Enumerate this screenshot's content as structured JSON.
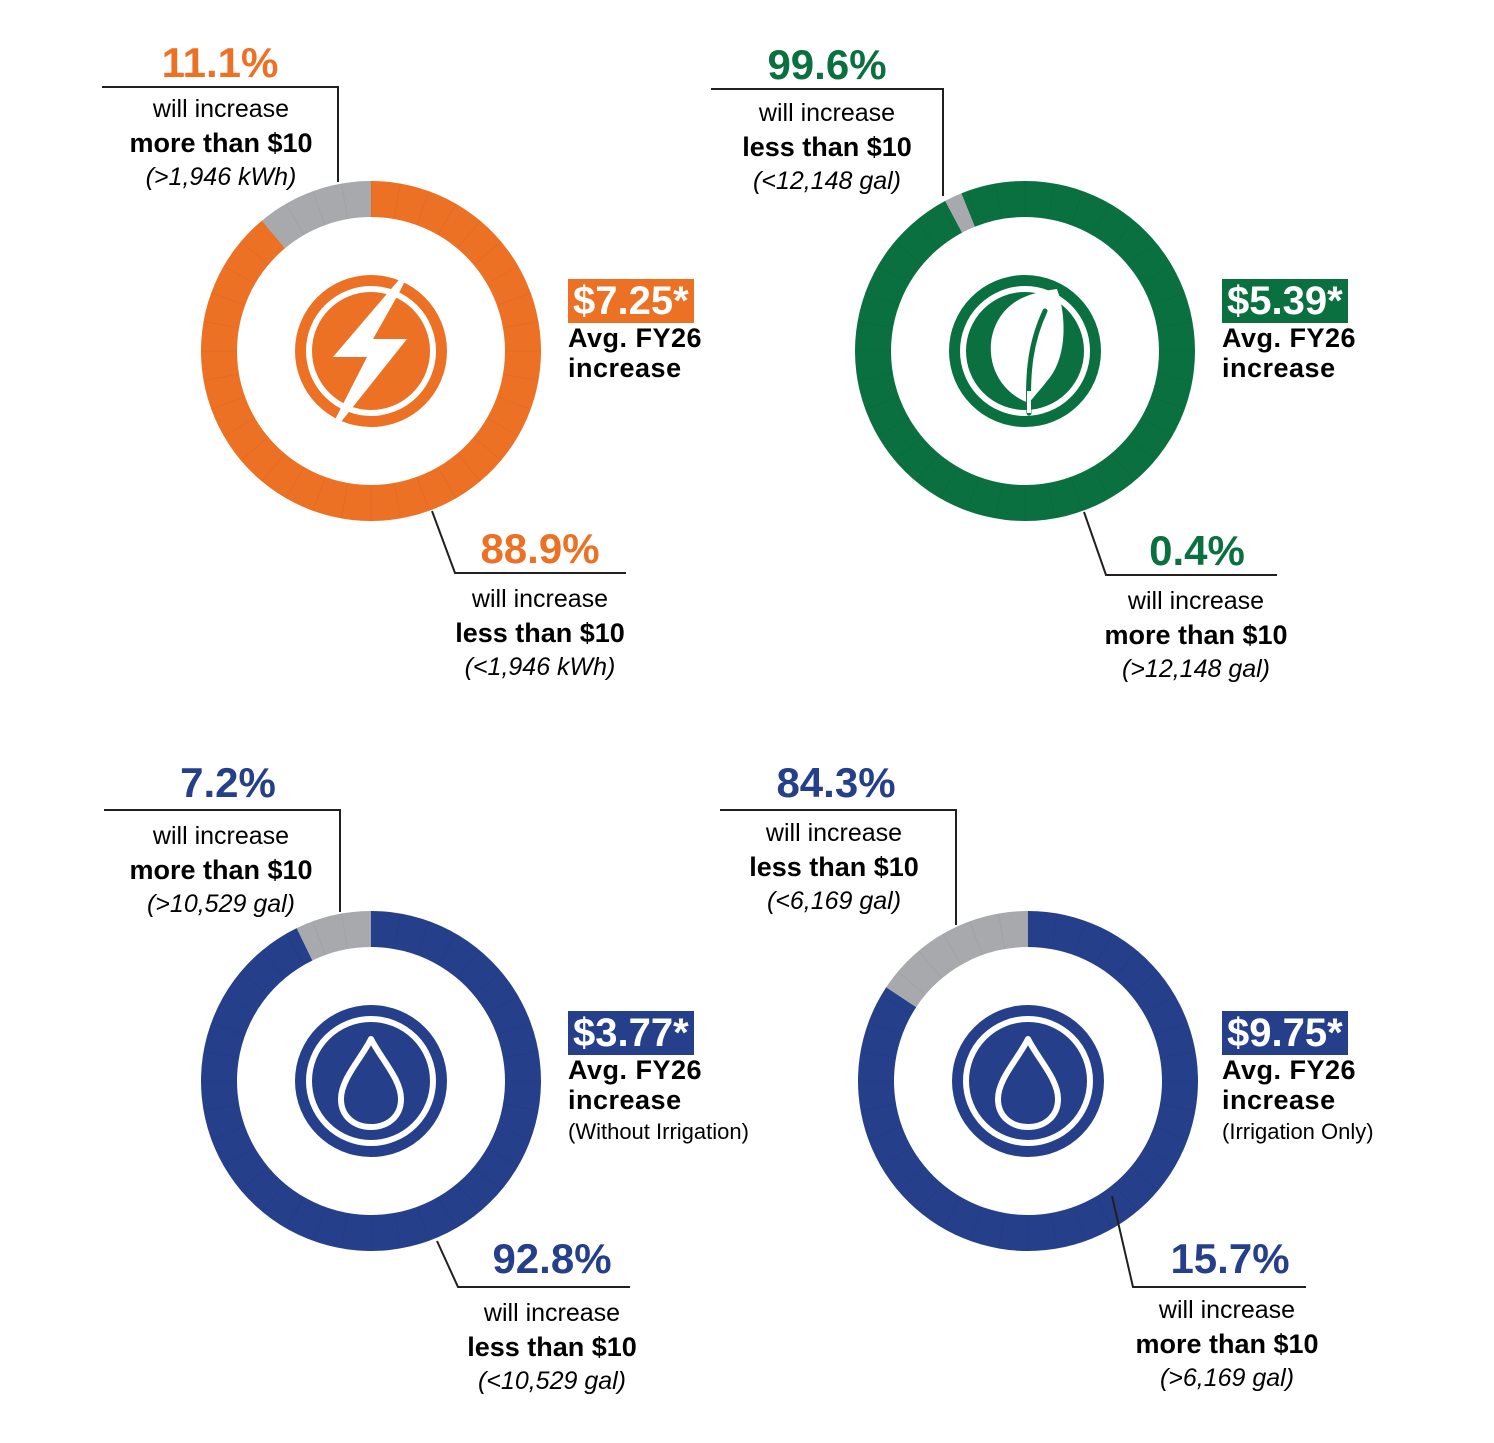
{
  "chart_data": [
    {
      "type": "pie",
      "color": "#ec7125",
      "icon": "lightning-bolt-icon",
      "slices": [
        {
          "percent": 11.1,
          "label": "11.1%",
          "line1": "will increase",
          "line2": "more than $10",
          "line3": "(>1,946 kWh)",
          "color": "#a7a9ac"
        },
        {
          "percent": 88.9,
          "label": "88.9%",
          "line1": "will increase",
          "line2": "less than $10",
          "line3": "(<1,946 kWh)",
          "color": "#ec7125"
        }
      ],
      "average": {
        "amount": "$7.25*",
        "label_line1": "Avg. FY26",
        "label_line2": "increase",
        "note": ""
      }
    },
    {
      "type": "pie",
      "color": "#0b7040",
      "icon": "leaf-icon",
      "slices": [
        {
          "percent": 99.6,
          "label": "99.6%",
          "line1": "will increase",
          "line2": "less than $10",
          "line3": "(<12,148 gal)",
          "color": "#0b7040"
        },
        {
          "percent": 0.4,
          "label": "0.4%",
          "line1": "will increase",
          "line2": "more than $10",
          "line3": "(>12,148 gal)",
          "color": "#a7a9ac"
        }
      ],
      "average": {
        "amount": "$5.39*",
        "label_line1": "Avg. FY26",
        "label_line2": "increase",
        "note": ""
      }
    },
    {
      "type": "pie",
      "color": "#253f8a",
      "icon": "water-drop-icon",
      "slices": [
        {
          "percent": 7.2,
          "label": "7.2%",
          "line1": "will increase",
          "line2": "more than $10",
          "line3": "(>10,529 gal)",
          "color": "#a7a9ac"
        },
        {
          "percent": 92.8,
          "label": "92.8%",
          "line1": "will increase",
          "line2": "less than $10",
          "line3": "(<10,529 gal)",
          "color": "#253f8a"
        }
      ],
      "average": {
        "amount": "$3.77*",
        "label_line1": "Avg. FY26",
        "label_line2": "increase",
        "note": "(Without Irrigation)"
      }
    },
    {
      "type": "pie",
      "color": "#253f8a",
      "icon": "water-drop-icon",
      "slices": [
        {
          "percent": 84.3,
          "label": "84.3%",
          "line1": "will increase",
          "line2": "less than $10",
          "line3": "(<6,169 gal)",
          "color": "#253f8a"
        },
        {
          "percent": 15.7,
          "label": "15.7%",
          "line1": "will increase",
          "line2": "more than $10",
          "line3": "(>6,169 gal)",
          "color": "#a7a9ac"
        }
      ],
      "average": {
        "amount": "$9.75*",
        "label_line1": "Avg. FY26",
        "label_line2": "increase",
        "note": "(Irrigation Only)"
      }
    }
  ]
}
